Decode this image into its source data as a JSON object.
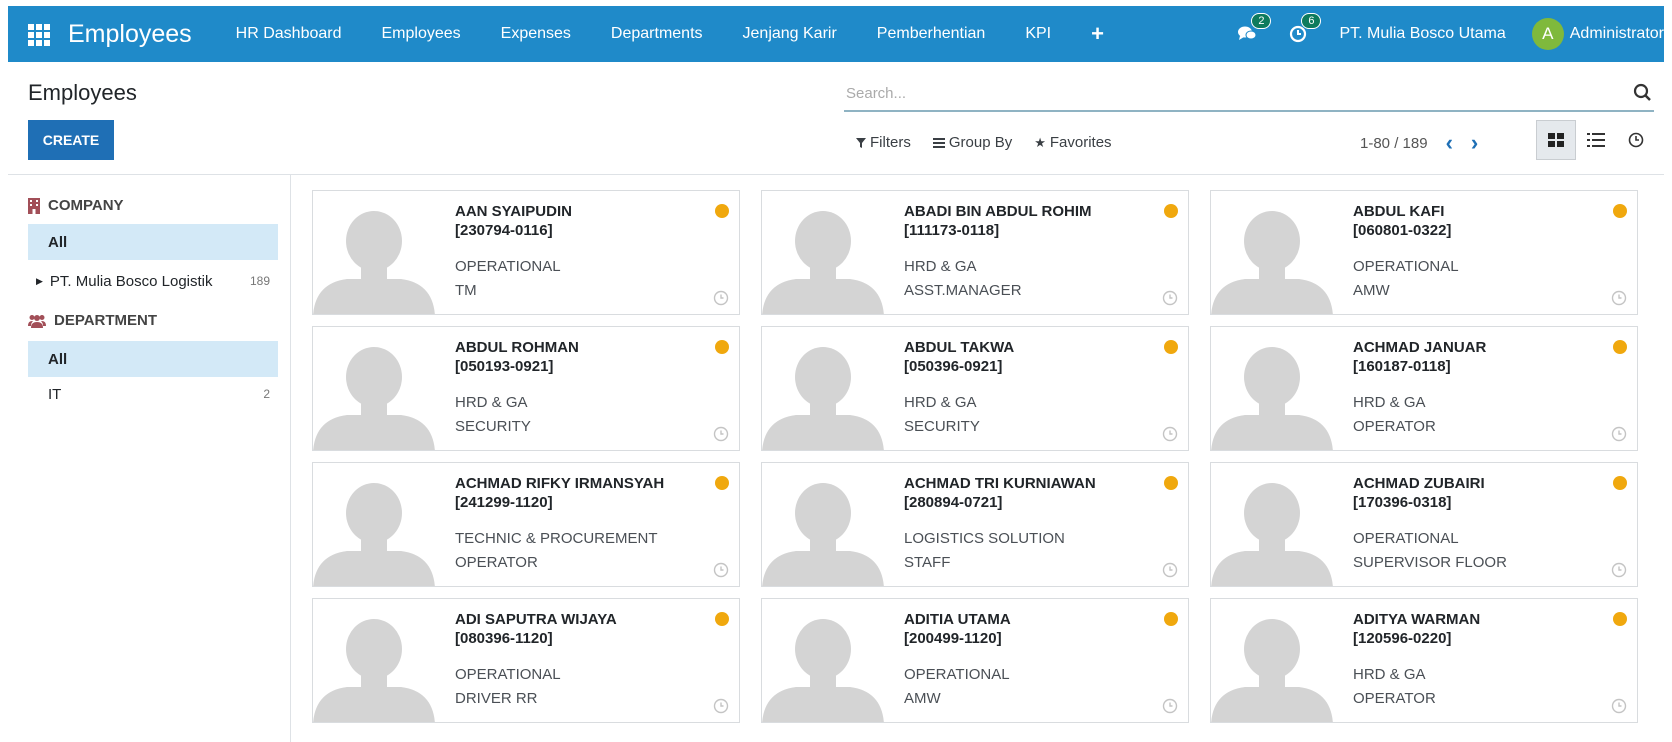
{
  "nav": {
    "brand": "Employees",
    "menu": [
      "HR Dashboard",
      "Employees",
      "Expenses",
      "Departments",
      "Jenjang Karir",
      "Pemberhentian",
      "KPI"
    ],
    "messages_badge": "2",
    "activities_badge": "6",
    "company": "PT. Mulia Bosco Utama",
    "user": {
      "initial": "A",
      "name": "Administrator"
    }
  },
  "control": {
    "title": "Employees",
    "create_label": "CREATE",
    "search_placeholder": "Search...",
    "filters_label": "Filters",
    "groupby_label": "Group By",
    "favorites_label": "Favorites",
    "pager": "1-80 / 189"
  },
  "sidebar": {
    "company": {
      "heading": "COMPANY",
      "all_label": "All",
      "items": [
        {
          "label": "PT. Mulia Bosco Logistik",
          "count": "189"
        }
      ]
    },
    "department": {
      "heading": "DEPARTMENT",
      "all_label": "All",
      "items": [
        {
          "label": "IT",
          "count": "2"
        }
      ]
    }
  },
  "employees": [
    {
      "name": "AAN SYAIPUDIN",
      "code": "[230794-0116]",
      "dept": "OPERATIONAL",
      "job": "TM"
    },
    {
      "name": "ABADI BIN ABDUL ROHIM",
      "code": "[111173-0118]",
      "dept": "HRD & GA",
      "job": "ASST.MANAGER"
    },
    {
      "name": "ABDUL KAFI",
      "code": "[060801-0322]",
      "dept": "OPERATIONAL",
      "job": "AMW"
    },
    {
      "name": "ABDUL ROHMAN",
      "code": "[050193-0921]",
      "dept": "HRD & GA",
      "job": "SECURITY"
    },
    {
      "name": "ABDUL TAKWA",
      "code": "[050396-0921]",
      "dept": "HRD & GA",
      "job": "SECURITY"
    },
    {
      "name": "ACHMAD JANUAR",
      "code": "[160187-0118]",
      "dept": "HRD & GA",
      "job": "OPERATOR"
    },
    {
      "name": "ACHMAD RIFKY IRMANSYAH",
      "code": "[241299-1120]",
      "dept": "TECHNIC & PROCUREMENT",
      "job": "OPERATOR"
    },
    {
      "name": "ACHMAD TRI KURNIAWAN",
      "code": "[280894-0721]",
      "dept": "LOGISTICS SOLUTION",
      "job": "STAFF"
    },
    {
      "name": "ACHMAD ZUBAIRI",
      "code": "[170396-0318]",
      "dept": "OPERATIONAL",
      "job": "SUPERVISOR FLOOR"
    },
    {
      "name": "ADI SAPUTRA WIJAYA",
      "code": "[080396-1120]",
      "dept": "OPERATIONAL",
      "job": "DRIVER RR"
    },
    {
      "name": "ADITIA UTAMA",
      "code": "[200499-1120]",
      "dept": "OPERATIONAL",
      "job": "AMW"
    },
    {
      "name": "ADITYA WARMAN",
      "code": "[120596-0220]",
      "dept": "HRD & GA",
      "job": "OPERATOR"
    }
  ]
}
